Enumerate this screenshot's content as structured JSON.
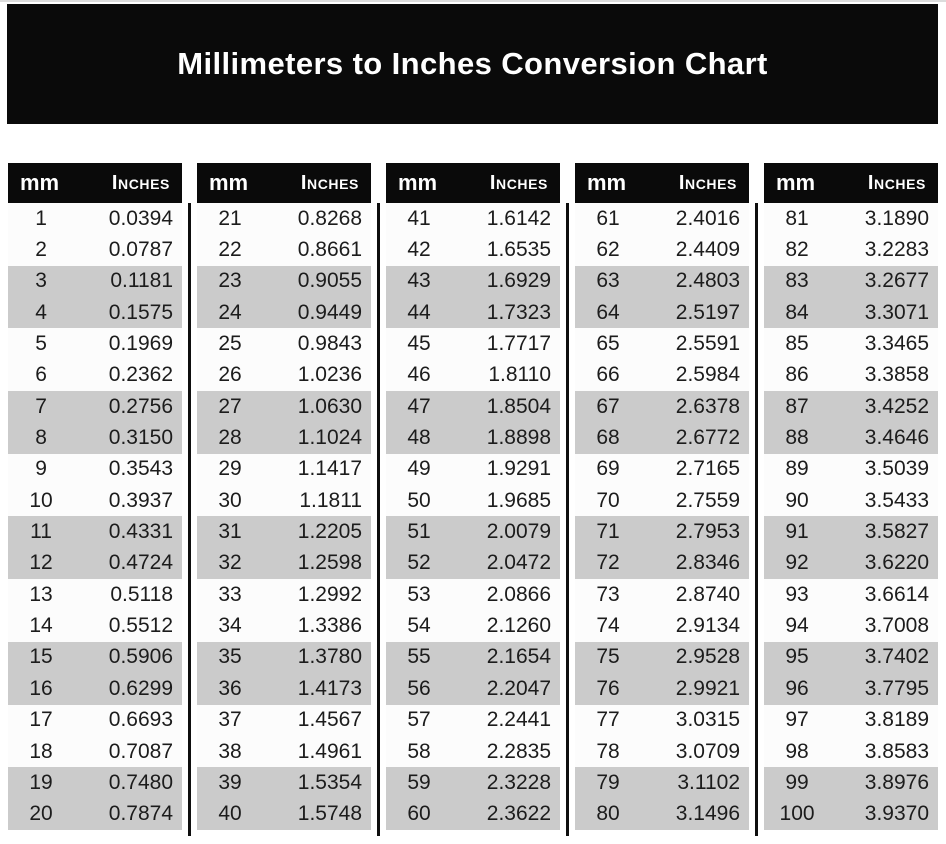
{
  "title": "Millimeters to Inches Conversion Chart",
  "colors": {
    "banner_bg": "#0a0a0a",
    "header_bg": "#0a0a0a",
    "stripe": "#cbcbcb",
    "row_bg": "#fcfcfc",
    "header_text": "#ffffff",
    "body_text": "#1c1c1c"
  },
  "table": {
    "header_mm": "mm",
    "header_inches": "Inches",
    "columns": [
      {
        "rows": [
          [
            "1",
            "0.0394"
          ],
          [
            "2",
            "0.0787"
          ],
          [
            "3",
            "0.1181"
          ],
          [
            "4",
            "0.1575"
          ],
          [
            "5",
            "0.1969"
          ],
          [
            "6",
            "0.2362"
          ],
          [
            "7",
            "0.2756"
          ],
          [
            "8",
            "0.3150"
          ],
          [
            "9",
            "0.3543"
          ],
          [
            "10",
            "0.3937"
          ],
          [
            "11",
            "0.4331"
          ],
          [
            "12",
            "0.4724"
          ],
          [
            "13",
            "0.5118"
          ],
          [
            "14",
            "0.5512"
          ],
          [
            "15",
            "0.5906"
          ],
          [
            "16",
            "0.6299"
          ],
          [
            "17",
            "0.6693"
          ],
          [
            "18",
            "0.7087"
          ],
          [
            "19",
            "0.7480"
          ],
          [
            "20",
            "0.7874"
          ]
        ]
      },
      {
        "rows": [
          [
            "21",
            "0.8268"
          ],
          [
            "22",
            "0.8661"
          ],
          [
            "23",
            "0.9055"
          ],
          [
            "24",
            "0.9449"
          ],
          [
            "25",
            "0.9843"
          ],
          [
            "26",
            "1.0236"
          ],
          [
            "27",
            "1.0630"
          ],
          [
            "28",
            "1.1024"
          ],
          [
            "29",
            "1.1417"
          ],
          [
            "30",
            "1.1811"
          ],
          [
            "31",
            "1.2205"
          ],
          [
            "32",
            "1.2598"
          ],
          [
            "33",
            "1.2992"
          ],
          [
            "34",
            "1.3386"
          ],
          [
            "35",
            "1.3780"
          ],
          [
            "36",
            "1.4173"
          ],
          [
            "37",
            "1.4567"
          ],
          [
            "38",
            "1.4961"
          ],
          [
            "39",
            "1.5354"
          ],
          [
            "40",
            "1.5748"
          ]
        ]
      },
      {
        "rows": [
          [
            "41",
            "1.6142"
          ],
          [
            "42",
            "1.6535"
          ],
          [
            "43",
            "1.6929"
          ],
          [
            "44",
            "1.7323"
          ],
          [
            "45",
            "1.7717"
          ],
          [
            "46",
            "1.8110"
          ],
          [
            "47",
            "1.8504"
          ],
          [
            "48",
            "1.8898"
          ],
          [
            "49",
            "1.9291"
          ],
          [
            "50",
            "1.9685"
          ],
          [
            "51",
            "2.0079"
          ],
          [
            "52",
            "2.0472"
          ],
          [
            "53",
            "2.0866"
          ],
          [
            "54",
            "2.1260"
          ],
          [
            "55",
            "2.1654"
          ],
          [
            "56",
            "2.2047"
          ],
          [
            "57",
            "2.2441"
          ],
          [
            "58",
            "2.2835"
          ],
          [
            "59",
            "2.3228"
          ],
          [
            "60",
            "2.3622"
          ]
        ]
      },
      {
        "rows": [
          [
            "61",
            "2.4016"
          ],
          [
            "62",
            "2.4409"
          ],
          [
            "63",
            "2.4803"
          ],
          [
            "64",
            "2.5197"
          ],
          [
            "65",
            "2.5591"
          ],
          [
            "66",
            "2.5984"
          ],
          [
            "67",
            "2.6378"
          ],
          [
            "68",
            "2.6772"
          ],
          [
            "69",
            "2.7165"
          ],
          [
            "70",
            "2.7559"
          ],
          [
            "71",
            "2.7953"
          ],
          [
            "72",
            "2.8346"
          ],
          [
            "73",
            "2.8740"
          ],
          [
            "74",
            "2.9134"
          ],
          [
            "75",
            "2.9528"
          ],
          [
            "76",
            "2.9921"
          ],
          [
            "77",
            "3.0315"
          ],
          [
            "78",
            "3.0709"
          ],
          [
            "79",
            "3.1102"
          ],
          [
            "80",
            "3.1496"
          ]
        ]
      },
      {
        "rows": [
          [
            "81",
            "3.1890"
          ],
          [
            "82",
            "3.2283"
          ],
          [
            "83",
            "3.2677"
          ],
          [
            "84",
            "3.3071"
          ],
          [
            "85",
            "3.3465"
          ],
          [
            "86",
            "3.3858"
          ],
          [
            "87",
            "3.4252"
          ],
          [
            "88",
            "3.4646"
          ],
          [
            "89",
            "3.5039"
          ],
          [
            "90",
            "3.5433"
          ],
          [
            "91",
            "3.5827"
          ],
          [
            "92",
            "3.6220"
          ],
          [
            "93",
            "3.6614"
          ],
          [
            "94",
            "3.7008"
          ],
          [
            "95",
            "3.7402"
          ],
          [
            "96",
            "3.7795"
          ],
          [
            "97",
            "3.8189"
          ],
          [
            "98",
            "3.8583"
          ],
          [
            "99",
            "3.8976"
          ],
          [
            "100",
            "3.9370"
          ]
        ]
      }
    ]
  }
}
